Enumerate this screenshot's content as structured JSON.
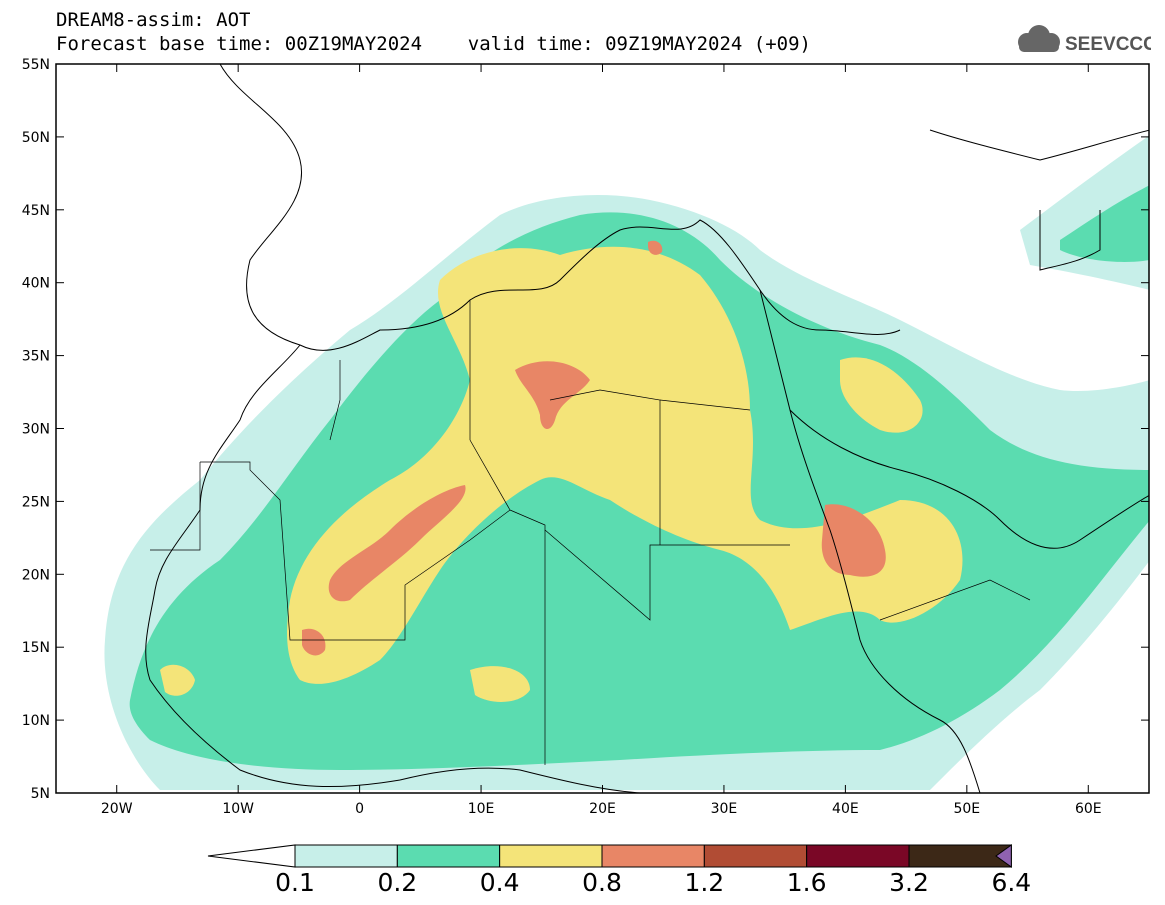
{
  "title": {
    "line1": "DREAM8-assim: AOT",
    "line2": "Forecast base time: 00Z19MAY2024    valid time: 09Z19MAY2024 (+09)"
  },
  "logo": {
    "text": "SEEVCCC",
    "icon": "cloud-icon"
  },
  "axes": {
    "lon_min": -25,
    "lon_max": 65,
    "lat_min": 5,
    "lat_max": 55,
    "lat_ticks": [
      "5N",
      "10N",
      "15N",
      "20N",
      "25N",
      "30N",
      "35N",
      "40N",
      "45N",
      "50N",
      "55N"
    ],
    "lon_ticks": [
      "20W",
      "10W",
      "0",
      "10E",
      "20E",
      "30E",
      "40E",
      "50E",
      "60E"
    ]
  },
  "colorbar": {
    "labels": [
      "0.1",
      "0.2",
      "0.4",
      "0.8",
      "1.2",
      "1.6",
      "3.2",
      "6.4"
    ],
    "colors": [
      "#c7efe9",
      "#5bdcb0",
      "#f4e479",
      "#e88666",
      "#b14c34",
      "#7a0726",
      "#3c2817",
      "#8f62b0"
    ]
  }
}
